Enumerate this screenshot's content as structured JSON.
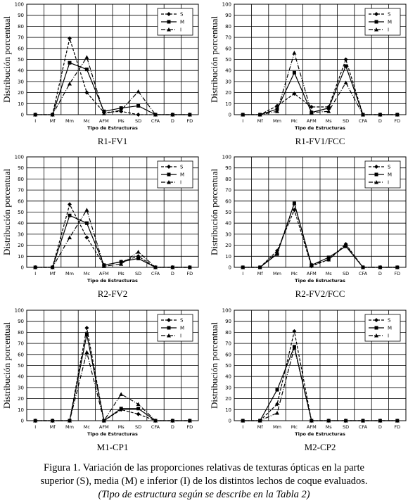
{
  "chart_data": [
    {
      "type": "line",
      "title": "R1-FV1",
      "x_label": "Tipo de Estructuras",
      "y_label": "Distribución porcentual",
      "categories": [
        "I",
        "Mf",
        "Mm",
        "Mc",
        "AFM",
        "Ms",
        "SD",
        "CFA",
        "D",
        "FD"
      ],
      "ylim": [
        0,
        100
      ],
      "yticks": [
        0,
        10,
        20,
        30,
        40,
        50,
        60,
        70,
        80,
        90,
        100
      ],
      "grid": true,
      "legend": "upper right",
      "series": [
        {
          "name": "S",
          "color": "#000000",
          "values": [
            0,
            0,
            69,
            20,
            2,
            3,
            0,
            0,
            0,
            0
          ]
        },
        {
          "name": "M",
          "color": "#000000",
          "values": [
            0,
            0,
            47,
            41,
            3,
            6,
            8,
            0,
            0,
            0
          ]
        },
        {
          "name": "I",
          "color": "#000000",
          "values": [
            0,
            0,
            28,
            52,
            1,
            4,
            21,
            0,
            0,
            0
          ]
        }
      ]
    },
    {
      "type": "line",
      "title": "R1-FV1/FCC",
      "x_label": "Tipo de Estructuras",
      "y_label": "Distribución porcentual",
      "categories": [
        "I",
        "Mf",
        "Mm",
        "Mc",
        "AFM",
        "Ms",
        "SD",
        "CFA",
        "D",
        "FD"
      ],
      "ylim": [
        0,
        100
      ],
      "yticks": [
        0,
        10,
        20,
        30,
        40,
        50,
        60,
        70,
        80,
        90,
        100
      ],
      "grid": true,
      "legend": "upper right",
      "series": [
        {
          "name": "S",
          "color": "#000000",
          "values": [
            0,
            0,
            8,
            19,
            7,
            7,
            50,
            0,
            0,
            0
          ]
        },
        {
          "name": "M",
          "color": "#000000",
          "values": [
            0,
            0,
            5,
            38,
            2,
            6,
            44,
            0,
            0,
            0
          ]
        },
        {
          "name": "I",
          "color": "#000000",
          "values": [
            0,
            0,
            3,
            56,
            2,
            3,
            29,
            0,
            0,
            0
          ]
        }
      ]
    },
    {
      "type": "line",
      "title": "R2-FV2",
      "x_label": "Tipo de Estructuras",
      "y_label": "Distribución porcentual",
      "categories": [
        "I",
        "Mf",
        "Mm",
        "Mc",
        "AFM",
        "Ms",
        "SD",
        "CFA",
        "D",
        "FD"
      ],
      "ylim": [
        0,
        100
      ],
      "yticks": [
        0,
        10,
        20,
        30,
        40,
        50,
        60,
        70,
        80,
        90,
        100
      ],
      "grid": true,
      "legend": "upper right",
      "series": [
        {
          "name": "S",
          "color": "#000000",
          "values": [
            0,
            0,
            57,
            27,
            2,
            5,
            10,
            0,
            0,
            0
          ]
        },
        {
          "name": "M",
          "color": "#000000",
          "values": [
            0,
            0,
            47,
            40,
            2,
            5,
            8,
            0,
            0,
            0
          ]
        },
        {
          "name": "I",
          "color": "#000000",
          "values": [
            0,
            0,
            27,
            52,
            1,
            3,
            14,
            0,
            0,
            0
          ]
        }
      ]
    },
    {
      "type": "line",
      "title": "R2-FV2/FCC",
      "x_label": "Tipo de Estructuras",
      "y_label": "Distribución porcentual",
      "categories": [
        "I",
        "Mf",
        "Mm",
        "Mc",
        "AFM",
        "Ms",
        "SD",
        "CFA",
        "D",
        "FD"
      ],
      "ylim": [
        0,
        100
      ],
      "yticks": [
        0,
        10,
        20,
        30,
        40,
        50,
        60,
        70,
        80,
        90,
        100
      ],
      "grid": true,
      "legend": "upper right",
      "series": [
        {
          "name": "S",
          "color": "#000000",
          "values": [
            0,
            0,
            15,
            52,
            1,
            7,
            21,
            0,
            0,
            0
          ]
        },
        {
          "name": "M",
          "color": "#000000",
          "values": [
            0,
            0,
            12,
            58,
            2,
            9,
            19,
            0,
            0,
            0
          ]
        },
        {
          "name": "I",
          "color": "#000000",
          "values": [
            0,
            0,
            13,
            58,
            2,
            7,
            20,
            0,
            0,
            0
          ]
        }
      ]
    },
    {
      "type": "line",
      "title": "M1-CP1",
      "x_label": "Tipo de Estructuras",
      "y_label": "Distribución porcentual",
      "categories": [
        "I",
        "Mf",
        "Mm",
        "Mc",
        "AFM",
        "Ms",
        "SD",
        "CFA",
        "D",
        "FD"
      ],
      "ylim": [
        0,
        100
      ],
      "yticks": [
        0,
        10,
        20,
        30,
        40,
        50,
        60,
        70,
        80,
        90,
        100
      ],
      "grid": true,
      "legend": "upper right",
      "series": [
        {
          "name": "S",
          "color": "#000000",
          "values": [
            0,
            0,
            0,
            84,
            0,
            10,
            6,
            0,
            0,
            0
          ]
        },
        {
          "name": "M",
          "color": "#000000",
          "values": [
            0,
            0,
            0,
            78,
            0,
            11,
            11,
            0,
            0,
            0
          ]
        },
        {
          "name": "I",
          "color": "#000000",
          "values": [
            0,
            0,
            0,
            62,
            0,
            24,
            15,
            0,
            0,
            0
          ]
        }
      ]
    },
    {
      "type": "line",
      "title": "M2-CP2",
      "x_label": "Tipo de Estructuras",
      "y_label": "Distribución porcentual",
      "categories": [
        "I",
        "Mf",
        "Mm",
        "Mc",
        "AFM",
        "Ms",
        "SD",
        "CFA",
        "D",
        "FD"
      ],
      "ylim": [
        0,
        100
      ],
      "yticks": [
        0,
        10,
        20,
        30,
        40,
        50,
        60,
        70,
        80,
        90,
        100
      ],
      "grid": true,
      "legend": "upper right",
      "series": [
        {
          "name": "S",
          "color": "#000000",
          "values": [
            0,
            0,
            15,
            81,
            0,
            0,
            0,
            0,
            0,
            0
          ]
        },
        {
          "name": "M",
          "color": "#000000",
          "values": [
            0,
            0,
            28,
            67,
            0,
            0,
            0,
            0,
            0,
            0
          ]
        },
        {
          "name": "I",
          "color": "#000000",
          "values": [
            0,
            0,
            7,
            66,
            0,
            0,
            0,
            0,
            0,
            0
          ]
        }
      ]
    }
  ],
  "caption": {
    "line1": "Figura 1. Variación de las proporciones relativas de texturas ópticas en la parte",
    "line2": "superior (S), media (M) e inferior (I) de los distintos lechos de coque evaluados.",
    "line3": "(Tipo de estructura según se describe en la Tabla 2)"
  }
}
